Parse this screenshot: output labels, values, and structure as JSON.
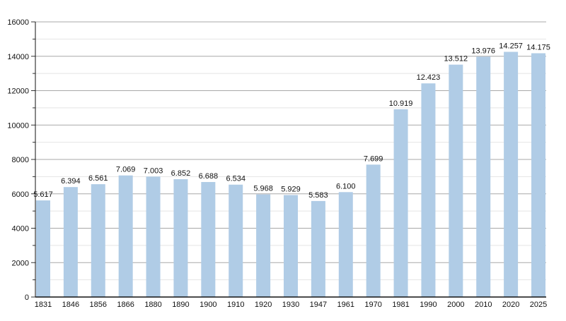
{
  "chart_data": {
    "type": "bar",
    "title": "",
    "xlabel": "",
    "ylabel": "",
    "ylim": [
      0,
      16000
    ],
    "yticks": [
      0,
      2000,
      4000,
      6000,
      8000,
      10000,
      12000,
      14000,
      16000
    ],
    "grid": true,
    "categories": [
      "1831",
      "1846",
      "1856",
      "1866",
      "1880",
      "1890",
      "1900",
      "1910",
      "1920",
      "1930",
      "1947",
      "1961",
      "1970",
      "1981",
      "1990",
      "2000",
      "2010",
      "2020",
      "2025"
    ],
    "values": [
      5617,
      6394,
      6561,
      7069,
      7003,
      6852,
      6688,
      6534,
      5968,
      5929,
      5583,
      6100,
      7699,
      10919,
      12423,
      13512,
      13976,
      14257,
      14175
    ],
    "data_labels": [
      "5.617",
      "6.394",
      "6.561",
      "7.069",
      "7.003",
      "6.852",
      "6.688",
      "6.534",
      "5.968",
      "5.929",
      "5.583",
      "6.100",
      "7.699",
      "10.919",
      "12.423",
      "13.512",
      "13.976",
      "14.257",
      "14.175"
    ],
    "bar_color": "#b0cce6"
  }
}
